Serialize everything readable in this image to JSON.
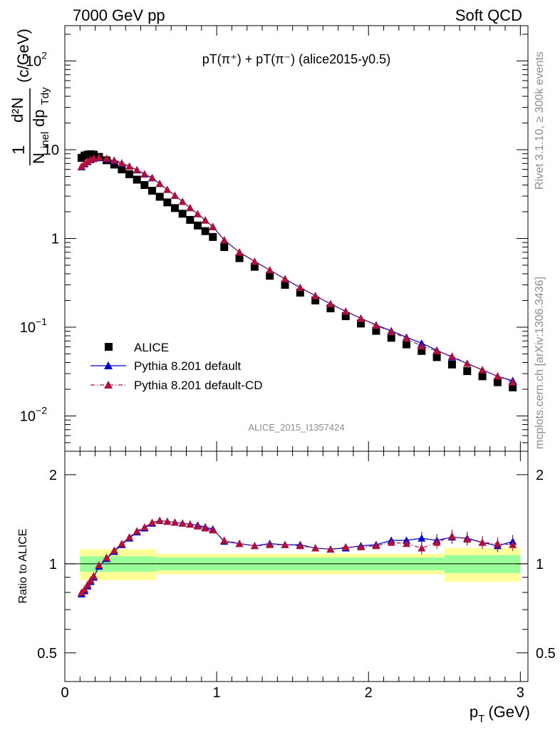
{
  "header": {
    "left": "7000 GeV pp",
    "right": "Soft QCD"
  },
  "side_labels": {
    "rivet": "Rivet 3.1.10, ≥ 300k events",
    "mcplots": "mcplots.cern.ch [arXiv:1306.3436]"
  },
  "colors": {
    "alice": "#000000",
    "pythia_default": "#0000cc",
    "pythia_cd": "#b0103a",
    "band_inner": "#99ff99",
    "band_outer": "#ffff99"
  },
  "chart_data": [
    {
      "type": "scatter",
      "panel": "main",
      "title": "pT(π⁺) + pT(π⁻) (alice2015-y0.5)",
      "analysis_label": "ALICE_2015_I1357424",
      "ylabel": "1/N_inel d²N/dp_T dy (c/GeV)",
      "ylabel_parts": {
        "one": "1",
        "n": "N",
        "inel": "inel",
        "d2n": "d²N",
        "dp": "dp",
        "tdy": "Tdy",
        "unit": "(c/GeV)"
      },
      "xlabel": "p_T (GeV)",
      "xlabel_parts": {
        "p": "p",
        "sub": "T",
        "unit": "(GeV)"
      },
      "xlim": [
        0,
        3.05
      ],
      "ylim": [
        0.004,
        250
      ],
      "yscale": "log",
      "xticks": [
        "0",
        "1",
        "2",
        "3"
      ],
      "yticks": [
        {
          "value": 100,
          "base": "10",
          "exp": "2"
        },
        {
          "value": 10,
          "base": "10",
          "exp": ""
        },
        {
          "value": 1,
          "base": "1",
          "exp": ""
        },
        {
          "value": 0.1,
          "base": "10",
          "exp": "−1"
        },
        {
          "value": 0.01,
          "base": "10",
          "exp": "−2"
        }
      ],
      "legend": {
        "placement": "bottom-left",
        "entries": [
          "ALICE",
          "Pythia 8.201 default",
          "Pythia 8.201 default-CD"
        ]
      },
      "x": [
        0.11,
        0.13,
        0.15,
        0.17,
        0.19,
        0.225,
        0.275,
        0.325,
        0.375,
        0.425,
        0.475,
        0.525,
        0.575,
        0.625,
        0.675,
        0.725,
        0.775,
        0.825,
        0.875,
        0.925,
        0.975,
        1.05,
        1.15,
        1.25,
        1.35,
        1.45,
        1.55,
        1.65,
        1.75,
        1.85,
        1.95,
        2.05,
        2.15,
        2.25,
        2.35,
        2.45,
        2.55,
        2.65,
        2.75,
        2.85,
        2.95
      ],
      "series": [
        {
          "name": "ALICE",
          "marker": "square",
          "values": [
            8.1,
            8.6,
            8.8,
            8.9,
            8.8,
            8.3,
            7.6,
            6.8,
            6.0,
            5.3,
            4.6,
            4.0,
            3.45,
            2.95,
            2.55,
            2.2,
            1.9,
            1.62,
            1.4,
            1.21,
            1.04,
            0.8,
            0.6,
            0.48,
            0.38,
            0.3,
            0.245,
            0.2,
            0.163,
            0.133,
            0.11,
            0.091,
            0.076,
            0.064,
            0.054,
            0.046,
            0.038,
            0.032,
            0.028,
            0.024,
            0.021
          ]
        },
        {
          "name": "Pythia 8.201 default",
          "marker": "triangle",
          "values": [
            6.4,
            6.9,
            7.3,
            7.7,
            7.9,
            8.1,
            7.9,
            7.5,
            7.0,
            6.5,
            5.9,
            5.3,
            4.8,
            4.15,
            3.55,
            3.05,
            2.6,
            2.21,
            1.89,
            1.61,
            1.36,
            0.96,
            0.7,
            0.55,
            0.44,
            0.35,
            0.28,
            0.226,
            0.183,
            0.151,
            0.126,
            0.106,
            0.091,
            0.077,
            0.066,
            0.055,
            0.046,
            0.039,
            0.033,
            0.028,
            0.025
          ]
        },
        {
          "name": "Pythia 8.201 default-CD",
          "marker": "triangle",
          "values": [
            6.5,
            7.0,
            7.4,
            7.8,
            8.0,
            8.2,
            8.0,
            7.6,
            7.1,
            6.5,
            5.95,
            5.35,
            4.85,
            4.15,
            3.55,
            3.05,
            2.6,
            2.21,
            1.89,
            1.6,
            1.35,
            0.96,
            0.7,
            0.55,
            0.44,
            0.35,
            0.28,
            0.226,
            0.183,
            0.151,
            0.125,
            0.105,
            0.089,
            0.075,
            0.061,
            0.054,
            0.047,
            0.039,
            0.033,
            0.028,
            0.024
          ]
        }
      ]
    },
    {
      "type": "scatter",
      "panel": "ratio",
      "ylabel": "Ratio to ALICE",
      "xlim": [
        0,
        3.05
      ],
      "ylim": [
        0.4,
        2.4
      ],
      "yscale": "log",
      "yticks": [
        "2",
        "1",
        "0.5"
      ],
      "x": [
        0.11,
        0.13,
        0.15,
        0.17,
        0.19,
        0.225,
        0.275,
        0.325,
        0.375,
        0.425,
        0.475,
        0.525,
        0.575,
        0.625,
        0.675,
        0.725,
        0.775,
        0.825,
        0.875,
        0.925,
        0.975,
        1.05,
        1.15,
        1.25,
        1.35,
        1.45,
        1.55,
        1.65,
        1.75,
        1.85,
        1.95,
        2.05,
        2.15,
        2.25,
        2.35,
        2.45,
        2.55,
        2.65,
        2.75,
        2.85,
        2.95
      ],
      "series": [
        {
          "name": "Pythia 8.201 default",
          "values": [
            0.79,
            0.81,
            0.84,
            0.87,
            0.9,
            0.98,
            1.04,
            1.1,
            1.16,
            1.22,
            1.28,
            1.32,
            1.37,
            1.4,
            1.39,
            1.38,
            1.37,
            1.36,
            1.35,
            1.33,
            1.31,
            1.19,
            1.17,
            1.15,
            1.17,
            1.16,
            1.16,
            1.13,
            1.12,
            1.13,
            1.15,
            1.16,
            1.2,
            1.2,
            1.22,
            1.2,
            1.23,
            1.22,
            1.18,
            1.15,
            1.19
          ]
        },
        {
          "name": "Pythia 8.201 default-CD",
          "values": [
            0.8,
            0.82,
            0.85,
            0.88,
            0.91,
            0.99,
            1.05,
            1.11,
            1.17,
            1.23,
            1.29,
            1.33,
            1.38,
            1.4,
            1.39,
            1.38,
            1.37,
            1.36,
            1.34,
            1.32,
            1.3,
            1.2,
            1.17,
            1.15,
            1.16,
            1.16,
            1.15,
            1.13,
            1.12,
            1.14,
            1.14,
            1.15,
            1.18,
            1.17,
            1.13,
            1.18,
            1.24,
            1.21,
            1.18,
            1.17,
            1.16
          ]
        }
      ],
      "bands": {
        "x_edges": [
          0.1,
          0.6,
          2.5,
          3.0
        ],
        "inner": [
          0.06,
          0.05,
          0.07
        ],
        "outer": [
          0.12,
          0.08,
          0.13
        ]
      }
    }
  ]
}
